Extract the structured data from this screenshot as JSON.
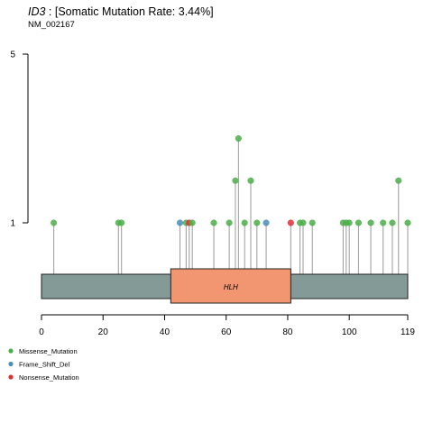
{
  "chart_data": {
    "type": "lollipop",
    "gene": "ID3",
    "title_rest": " : [Somatic Mutation Rate: 3.44%]",
    "subtitle": "NM_002167",
    "xlim": [
      0,
      119
    ],
    "x_ticks": [
      0,
      20,
      40,
      60,
      80,
      100,
      119
    ],
    "y_ticks": [
      1,
      5
    ],
    "domains": [
      {
        "name": "HLH",
        "start": 42,
        "end": 81,
        "color": "#F19670"
      }
    ],
    "protein_color": "#849A97",
    "legend": [
      {
        "name": "Missense_Mutation",
        "color": "#4DAF4A"
      },
      {
        "name": "Frame_Shift_Del",
        "color": "#4B8EBC"
      },
      {
        "name": "Nonsense_Mutation",
        "color": "#E42F35"
      }
    ],
    "mutations": [
      {
        "pos": 4,
        "count": 1,
        "type": "Missense_Mutation"
      },
      {
        "pos": 25,
        "count": 1,
        "type": "Missense_Mutation"
      },
      {
        "pos": 26,
        "count": 1,
        "type": "Missense_Mutation"
      },
      {
        "pos": 45,
        "count": 1,
        "type": "Frame_Shift_Del"
      },
      {
        "pos": 47,
        "count": 1,
        "type": "Missense_Mutation"
      },
      {
        "pos": 48,
        "count": 1,
        "type": "Nonsense_Mutation"
      },
      {
        "pos": 49,
        "count": 1,
        "type": "Missense_Mutation"
      },
      {
        "pos": 56,
        "count": 1,
        "type": "Missense_Mutation"
      },
      {
        "pos": 61,
        "count": 1,
        "type": "Missense_Mutation"
      },
      {
        "pos": 63,
        "count": 2,
        "type": "Missense_Mutation"
      },
      {
        "pos": 64,
        "count": 3,
        "type": "Missense_Mutation"
      },
      {
        "pos": 66,
        "count": 1,
        "type": "Missense_Mutation"
      },
      {
        "pos": 68,
        "count": 2,
        "type": "Missense_Mutation"
      },
      {
        "pos": 70,
        "count": 1,
        "type": "Missense_Mutation"
      },
      {
        "pos": 73,
        "count": 1,
        "type": "Frame_Shift_Del"
      },
      {
        "pos": 81,
        "count": 1,
        "type": "Nonsense_Mutation"
      },
      {
        "pos": 84,
        "count": 1,
        "type": "Missense_Mutation"
      },
      {
        "pos": 85,
        "count": 1,
        "type": "Missense_Mutation"
      },
      {
        "pos": 88,
        "count": 1,
        "type": "Missense_Mutation"
      },
      {
        "pos": 98,
        "count": 1,
        "type": "Missense_Mutation"
      },
      {
        "pos": 99,
        "count": 1,
        "type": "Missense_Mutation"
      },
      {
        "pos": 100,
        "count": 1,
        "type": "Missense_Mutation"
      },
      {
        "pos": 103,
        "count": 1,
        "type": "Missense_Mutation"
      },
      {
        "pos": 107,
        "count": 1,
        "type": "Missense_Mutation"
      },
      {
        "pos": 111,
        "count": 1,
        "type": "Missense_Mutation"
      },
      {
        "pos": 114,
        "count": 1,
        "type": "Missense_Mutation"
      },
      {
        "pos": 116,
        "count": 2,
        "type": "Missense_Mutation"
      },
      {
        "pos": 119,
        "count": 1,
        "type": "Missense_Mutation"
      }
    ]
  }
}
